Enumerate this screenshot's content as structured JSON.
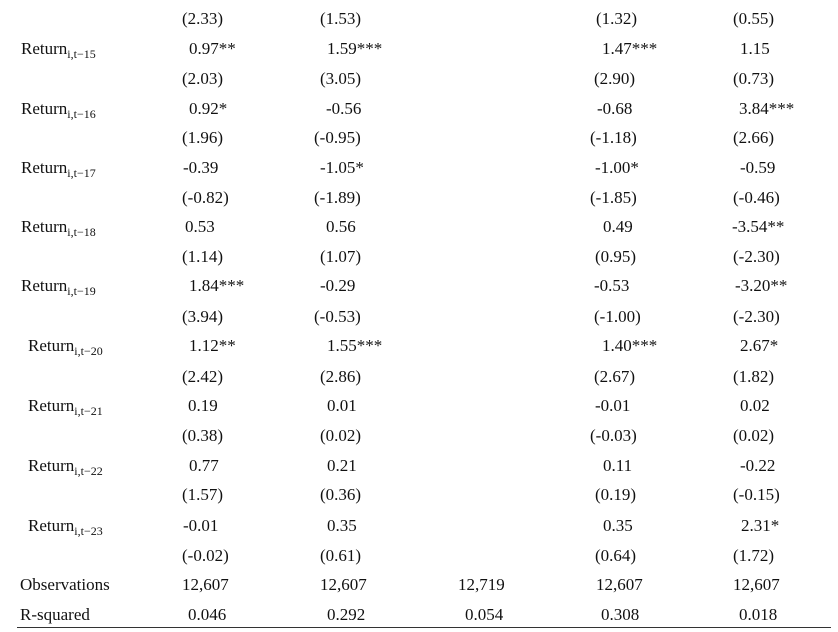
{
  "table": {
    "rows": [
      {
        "label": "",
        "values": [
          "(2.33)",
          "(1.53)",
          "",
          "(1.32)",
          "(0.55)"
        ]
      },
      {
        "label": "Return",
        "sub": "i,t−15",
        "values": [
          "0.97**",
          "1.59***",
          "",
          "1.47***",
          "1.15"
        ]
      },
      {
        "label": "",
        "values": [
          "(2.03)",
          "(3.05)",
          "",
          "(2.90)",
          "(0.73)"
        ]
      },
      {
        "label": "Return",
        "sub": "i,t−16",
        "values": [
          "0.92*",
          "-0.56",
          "",
          "-0.68",
          "3.84***"
        ]
      },
      {
        "label": "",
        "values": [
          "(1.96)",
          "(-0.95)",
          "",
          "(-1.18)",
          "(2.66)"
        ]
      },
      {
        "label": "Return",
        "sub": "i,t−17",
        "values": [
          "-0.39",
          "-1.05*",
          "",
          "-1.00*",
          "-0.59"
        ]
      },
      {
        "label": "",
        "values": [
          "(-0.82)",
          "(-1.89)",
          "",
          "(-1.85)",
          "(-0.46)"
        ]
      },
      {
        "label": "Return",
        "sub": "i,t−18",
        "values": [
          "0.53",
          "0.56",
          "",
          "0.49",
          "-3.54**"
        ]
      },
      {
        "label": "",
        "values": [
          "(1.14)",
          "(1.07)",
          "",
          "(0.95)",
          "(-2.30)"
        ]
      },
      {
        "label": "Return",
        "sub": "i,t−19",
        "values": [
          "1.84***",
          "-0.29",
          "",
          "-0.53",
          "-3.20**"
        ]
      },
      {
        "label": "",
        "values": [
          "(3.94)",
          "(-0.53)",
          "",
          "(-1.00)",
          "(-2.30)"
        ]
      },
      {
        "label": "Return",
        "sub": "i,t−20",
        "values": [
          "1.12**",
          "1.55***",
          "",
          "1.40***",
          "2.67*"
        ]
      },
      {
        "label": "",
        "values": [
          "(2.42)",
          "(2.86)",
          "",
          "(2.67)",
          "(1.82)"
        ]
      },
      {
        "label": "Return",
        "sub": "i,t−21",
        "values": [
          "0.19",
          "0.01",
          "",
          "-0.01",
          "0.02"
        ]
      },
      {
        "label": "",
        "values": [
          "(0.38)",
          "(0.02)",
          "",
          "(-0.03)",
          "(0.02)"
        ]
      },
      {
        "label": "Return",
        "sub": "i,t−22",
        "values": [
          "0.77",
          "0.21",
          "",
          "0.11",
          "-0.22"
        ]
      },
      {
        "label": "",
        "values": [
          "(1.57)",
          "(0.36)",
          "",
          "(0.19)",
          "(-0.15)"
        ]
      },
      {
        "label": "Return",
        "sub": "i,t−23",
        "values": [
          "-0.01",
          "0.35",
          "",
          "0.35",
          "2.31*"
        ]
      },
      {
        "label": "",
        "values": [
          "(-0.02)",
          "(0.61)",
          "",
          "(0.64)",
          "(1.72)"
        ]
      },
      {
        "label": "Observations",
        "values": [
          "12,607",
          "12,607",
          "12,719",
          "12,607",
          "12,607"
        ]
      },
      {
        "label": "R-squared",
        "values": [
          "0.046",
          "0.292",
          "0.054",
          "0.308",
          "0.018"
        ]
      }
    ]
  }
}
